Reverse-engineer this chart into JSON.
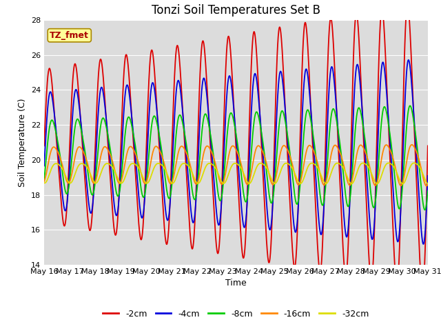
{
  "title": "Tonzi Soil Temperatures Set B",
  "xlabel": "Time",
  "ylabel": "Soil Temperature (C)",
  "ylim": [
    14,
    28
  ],
  "plot_bg_color": "#dcdcdc",
  "fig_bg_color": "#ffffff",
  "annotation_text": "TZ_fmet",
  "annotation_bg": "#ffff99",
  "annotation_border": "#aa8800",
  "series": [
    {
      "label": "-2cm",
      "color": "#dd0000",
      "amplitude": 4.2,
      "phase": 0.0,
      "mean": 20.8,
      "amp_growth": 0.06
    },
    {
      "label": "-4cm",
      "color": "#0000dd",
      "amplitude": 3.2,
      "phase": 0.25,
      "mean": 20.6,
      "amp_growth": 0.04
    },
    {
      "label": "-8cm",
      "color": "#00cc00",
      "amplitude": 2.0,
      "phase": 0.65,
      "mean": 20.3,
      "amp_growth": 0.03
    },
    {
      "label": "-16cm",
      "color": "#ff8800",
      "amplitude": 1.0,
      "phase": 1.1,
      "mean": 19.8,
      "amp_growth": 0.01
    },
    {
      "label": "-32cm",
      "color": "#dddd00",
      "amplitude": 0.55,
      "phase": 1.6,
      "mean": 19.3,
      "amp_growth": 0.005
    }
  ],
  "xtick_labels": [
    "May 16",
    "May 17",
    "May 18",
    "May 19",
    "May 20",
    "May 21",
    "May 22",
    "May 23",
    "May 24",
    "May 25",
    "May 26",
    "May 27",
    "May 28",
    "May 29",
    "May 30",
    "May 31"
  ],
  "ytick_vals": [
    14,
    16,
    18,
    20,
    22,
    24,
    26,
    28
  ],
  "legend_fontsize": 9,
  "title_fontsize": 12,
  "axis_label_fontsize": 9,
  "tick_fontsize": 8,
  "linewidth": 1.3
}
